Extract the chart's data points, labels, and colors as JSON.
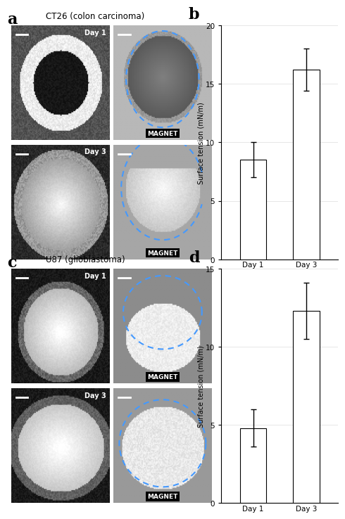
{
  "panel_b": {
    "categories": [
      "Day 1",
      "Day 3"
    ],
    "values": [
      8.5,
      16.2
    ],
    "errors": [
      1.5,
      1.8
    ],
    "ylabel": "Surface tension (mN/m)",
    "ylim": [
      0,
      20
    ],
    "yticks": [
      0,
      5,
      10,
      15,
      20
    ],
    "label": "b"
  },
  "panel_d": {
    "categories": [
      "Day 1",
      "Day 3"
    ],
    "values": [
      4.8,
      12.3
    ],
    "errors": [
      1.2,
      1.8
    ],
    "ylabel": "Surface tension (mN/m)",
    "ylim": [
      0,
      15
    ],
    "yticks": [
      0,
      5,
      10,
      15
    ],
    "label": "d"
  },
  "panel_a_label": "a",
  "panel_a_title": "CT26 (colon carcinoma)",
  "panel_c_label": "c",
  "panel_c_title": "U87 (glioblastoma)",
  "bar_color": "#ffffff",
  "bar_edgecolor": "#000000",
  "bg_color": "#ffffff",
  "figure_bg": "#ffffff",
  "bar_width": 0.5,
  "capsize": 3,
  "elinewidth": 1.0,
  "grid_color": "#dddddd"
}
